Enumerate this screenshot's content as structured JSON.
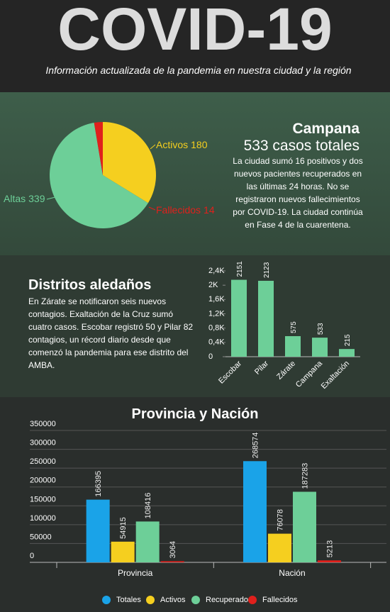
{
  "header": {
    "title": "COVID-19",
    "subtitle": "Información actualizada de la pandemia en nuestra ciudad y la región"
  },
  "campana": {
    "title": "Campana",
    "total": "533 casos totales",
    "text": "La ciudad sumó 16 positivos y dos nuevos pacientes recuperados en las últimas 24 horas. No se registraron nuevos fallecimientos por COVID-19. La ciudad continúa en Fase 4 de la cuarentena."
  },
  "distritos": {
    "title": "Distritos aledaños",
    "text": "En Zárate se notificaron seis nuevos contagios. Exaltación de la Cruz sumó cuatro casos. Escobar registró 50 y Pilar 82 contagios, un récord diario desde que comenzó la pandemia para ese distrito del AMBA."
  },
  "chart_data": [
    {
      "type": "pie",
      "categories": [
        "Activos",
        "Altas",
        "Fallecidos"
      ],
      "values": [
        180,
        339,
        14
      ],
      "colors": [
        "#f5cf1f",
        "#6dcf98",
        "#e0201c"
      ]
    },
    {
      "type": "bar",
      "categories": [
        "Escobar",
        "Pilar",
        "Zárate",
        "Campana",
        "Exaltación"
      ],
      "values": [
        2151,
        2123,
        575,
        533,
        215
      ],
      "color": "#6dcf98",
      "ylim": [
        0,
        2400
      ],
      "yticks": [
        0,
        {
          "value": 400,
          "label": "0,4K"
        },
        {
          "value": 800,
          "label": "0,8K"
        },
        {
          "value": 1200,
          "label": "1,2K"
        },
        {
          "value": 1600,
          "label": "1,6K"
        },
        {
          "value": 2000,
          "label": "2K"
        },
        {
          "value": 2400,
          "label": "2,4K"
        }
      ]
    },
    {
      "type": "bar",
      "title": "Provincia y Nación",
      "categories": [
        "Provincia",
        "Nación"
      ],
      "series": [
        {
          "name": "Totales",
          "color": "#1aa3e8",
          "values": [
            166395,
            268574
          ]
        },
        {
          "name": "Activos",
          "color": "#f5cf1f",
          "values": [
            54915,
            76078
          ]
        },
        {
          "name": "Recuperados",
          "color": "#6dcf98",
          "values": [
            108416,
            187283
          ]
        },
        {
          "name": "Fallecidos",
          "color": "#e0201c",
          "values": [
            3064,
            5213
          ]
        }
      ],
      "ylim": [
        0,
        350000
      ],
      "yticks": [
        0,
        50000,
        100000,
        150000,
        200000,
        250000,
        300000,
        350000
      ],
      "grid": true,
      "legend": "bottom"
    }
  ]
}
